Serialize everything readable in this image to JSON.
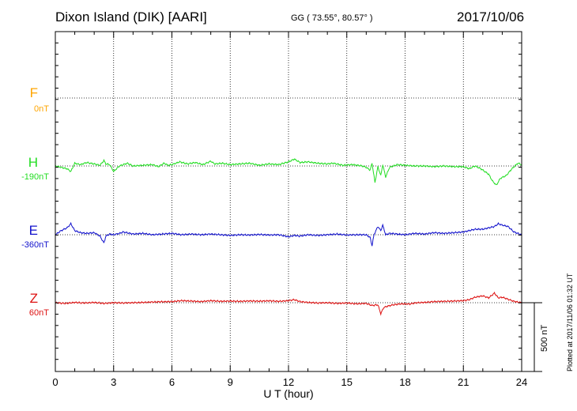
{
  "header": {
    "station": "Dixon Island (DIK)  [AARI]",
    "coords": "GG ( 73.55°,  80.57° )",
    "date": "2017/10/06"
  },
  "footer": {
    "plotted": "Plotted at 2017/11/06 01:32 UT",
    "scale": "500 nT"
  },
  "chart_data": {
    "type": "line",
    "title": "Dixon Island (DIK)  [AARI]",
    "xlabel": "U T (hour)",
    "xlim": [
      0,
      24
    ],
    "xticks": [
      "0",
      "3",
      "6",
      "9",
      "12",
      "15",
      "18",
      "21",
      "24"
    ],
    "grid": true,
    "scale_bar_nT": 500,
    "series": [
      {
        "name": "F",
        "base_label": "0nT",
        "color": "#ffa500",
        "x": [],
        "y": []
      },
      {
        "name": "H",
        "base_label": "-190nT",
        "color": "#22dd22",
        "x": [
          0,
          0.3,
          0.6,
          0.8,
          1.0,
          1.3,
          1.6,
          2.0,
          2.3,
          2.5,
          2.6,
          2.8,
          3.0,
          3.3,
          3.5,
          3.7,
          4.0,
          4.5,
          5.0,
          5.3,
          5.6,
          5.8,
          6.0,
          6.4,
          6.8,
          7.2,
          7.6,
          8.0,
          8.2,
          8.6,
          9.0,
          9.5,
          10.0,
          10.5,
          11.0,
          11.5,
          12.0,
          12.3,
          12.6,
          13.0,
          13.5,
          14.0,
          14.3,
          14.8,
          15.3,
          15.8,
          16.0,
          16.2,
          16.3,
          16.45,
          16.6,
          16.75,
          16.85,
          17.0,
          17.2,
          17.6,
          18.0,
          18.5,
          19.0,
          19.5,
          20.0,
          20.5,
          21.0,
          21.3,
          21.6,
          21.9,
          22.1,
          22.3,
          22.5,
          22.7,
          22.9,
          23.2,
          23.5,
          23.8,
          24.0
        ],
        "y": [
          -190,
          -200,
          -210,
          -230,
          -170,
          -180,
          -165,
          -175,
          -185,
          -150,
          -175,
          -180,
          -230,
          -190,
          -180,
          -170,
          -190,
          -185,
          -180,
          -195,
          -170,
          -185,
          -180,
          -160,
          -175,
          -165,
          -180,
          -155,
          -175,
          -170,
          -180,
          -175,
          -170,
          -185,
          -175,
          -180,
          -160,
          -140,
          -165,
          -160,
          -170,
          -175,
          -170,
          -185,
          -180,
          -190,
          -200,
          -220,
          -170,
          -310,
          -195,
          -260,
          -180,
          -270,
          -200,
          -180,
          -185,
          -190,
          -190,
          -195,
          -190,
          -195,
          -195,
          -210,
          -190,
          -210,
          -230,
          -250,
          -300,
          -330,
          -280,
          -260,
          -210,
          -170,
          -180
        ]
      },
      {
        "name": "E",
        "base_label": "-360nT",
        "color": "#1111cc",
        "x": [
          0,
          0.3,
          0.6,
          0.8,
          1.0,
          1.3,
          1.6,
          2.0,
          2.3,
          2.5,
          2.6,
          2.8,
          3.0,
          3.3,
          3.5,
          4.0,
          4.5,
          5.0,
          5.5,
          6.0,
          6.5,
          7.0,
          7.5,
          8.0,
          8.5,
          9.0,
          9.5,
          10.0,
          10.5,
          11.0,
          11.5,
          12.0,
          12.3,
          12.6,
          13.0,
          13.5,
          14.0,
          14.5,
          15.0,
          15.5,
          16.0,
          16.2,
          16.3,
          16.4,
          16.6,
          16.75,
          16.85,
          17.0,
          17.2,
          17.6,
          18.0,
          18.5,
          19.0,
          19.5,
          20.0,
          20.5,
          21.0,
          21.3,
          21.6,
          22.0,
          22.3,
          22.6,
          22.8,
          23.0,
          23.3,
          23.6,
          24.0
        ],
        "y": [
          -360,
          -330,
          -310,
          -280,
          -330,
          -345,
          -350,
          -345,
          -370,
          -420,
          -370,
          -355,
          -360,
          -350,
          -340,
          -355,
          -350,
          -360,
          -355,
          -350,
          -360,
          -355,
          -360,
          -355,
          -360,
          -365,
          -360,
          -362,
          -358,
          -362,
          -360,
          -375,
          -365,
          -370,
          -360,
          -365,
          -360,
          -355,
          -362,
          -360,
          -360,
          -380,
          -440,
          -360,
          -300,
          -330,
          -290,
          -360,
          -350,
          -355,
          -360,
          -350,
          -355,
          -345,
          -350,
          -345,
          -340,
          -330,
          -320,
          -320,
          -310,
          -300,
          -280,
          -290,
          -300,
          -340,
          -360
        ]
      },
      {
        "name": "Z",
        "base_label": "60nT",
        "color": "#dd1111",
        "x": [
          0,
          0.5,
          1.0,
          1.5,
          2.0,
          2.5,
          3.0,
          3.5,
          4.0,
          4.5,
          5.0,
          5.5,
          6.0,
          6.5,
          7.0,
          7.5,
          8.0,
          8.5,
          9.0,
          9.5,
          10.0,
          10.5,
          11.0,
          11.5,
          12.0,
          12.3,
          12.6,
          13.0,
          13.5,
          14.0,
          14.5,
          15.0,
          15.5,
          16.0,
          16.3,
          16.6,
          16.75,
          16.9,
          17.1,
          17.4,
          17.8,
          18.2,
          18.6,
          19.0,
          19.5,
          20.0,
          20.5,
          21.0,
          21.3,
          21.6,
          22.0,
          22.3,
          22.6,
          22.8,
          23.0,
          23.3,
          23.6,
          24.0
        ],
        "y": [
          60,
          55,
          62,
          58,
          62,
          55,
          60,
          58,
          60,
          62,
          65,
          67,
          68,
          75,
          72,
          68,
          75,
          70,
          72,
          70,
          73,
          71,
          74,
          70,
          75,
          82,
          68,
          62,
          58,
          60,
          55,
          58,
          52,
          55,
          40,
          45,
          -20,
          25,
          35,
          45,
          52,
          50,
          60,
          62,
          68,
          70,
          72,
          75,
          82,
          100,
          110,
          95,
          130,
          95,
          100,
          85,
          70,
          60
        ]
      }
    ]
  }
}
